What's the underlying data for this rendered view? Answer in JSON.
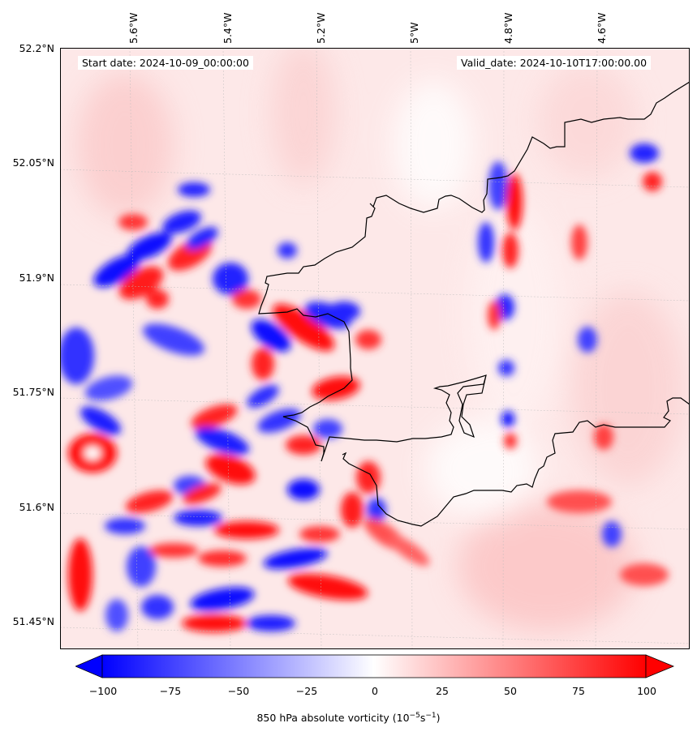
{
  "header": {
    "start_date": "Start date: 2024-10-09_00:00:00",
    "valid_date": "Valid_date: 2024-10-10T17:00:00.00"
  },
  "map": {
    "lon_ticks": [
      "5.6°W",
      "5.4°W",
      "5.2°W",
      "5°W",
      "4.8°W",
      "4.6°W"
    ],
    "lat_ticks": [
      "52.2°N",
      "52.05°N",
      "51.9°N",
      "51.75°N",
      "51.6°N",
      "51.45°N"
    ],
    "colors": {
      "negative": "#0000ff",
      "neutral": "#ffffff",
      "positive": "#ff0000",
      "coastline": "#000000"
    }
  },
  "colorbar": {
    "ticks": [
      "−100",
      "−75",
      "−50",
      "−25",
      "0",
      "25",
      "50",
      "75",
      "100"
    ],
    "range": [
      -100,
      100
    ],
    "label_main": "850 hPa absolute vorticity (10",
    "label_exp1": "−5",
    "label_mid": "s",
    "label_exp2": "−1",
    "label_end": ")"
  }
}
